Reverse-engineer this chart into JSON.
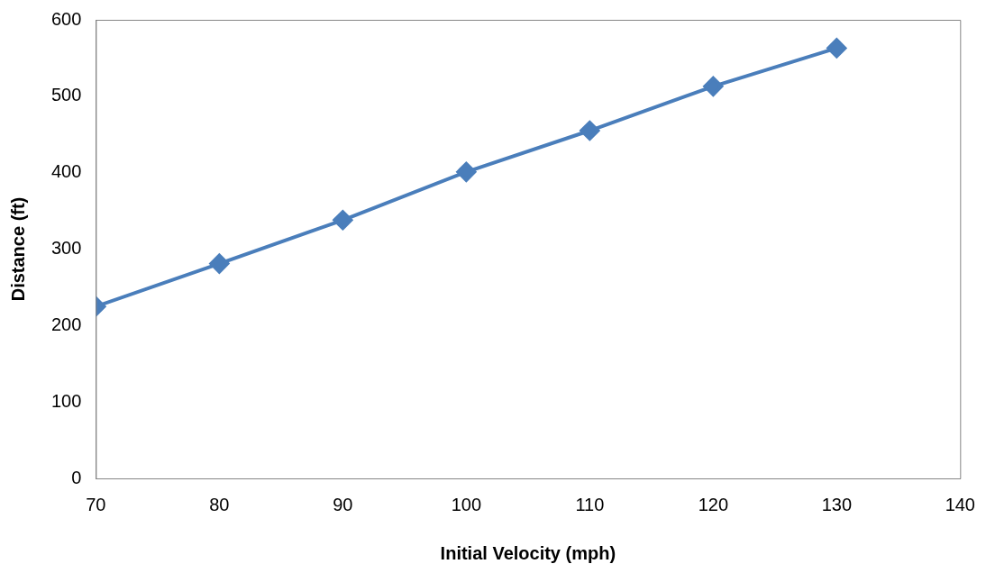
{
  "chart_data": {
    "type": "line",
    "xlabel": "Initial Velocity (mph)",
    "ylabel": "Distance (ft)",
    "x": [
      70,
      80,
      90,
      100,
      110,
      120,
      130
    ],
    "series": [
      {
        "color": "#4a7ebb",
        "values": [
          225,
          281,
          338,
          401,
          455,
          513,
          563
        ]
      }
    ],
    "xlim": [
      70,
      140
    ],
    "xticks": [
      70,
      80,
      90,
      100,
      110,
      120,
      130,
      140
    ],
    "ylim": [
      0,
      600
    ],
    "yticks": [
      0,
      100,
      200,
      300,
      400,
      500,
      600
    ],
    "grid": false,
    "legend": false,
    "marker": "diamond",
    "line_style": "solid"
  }
}
